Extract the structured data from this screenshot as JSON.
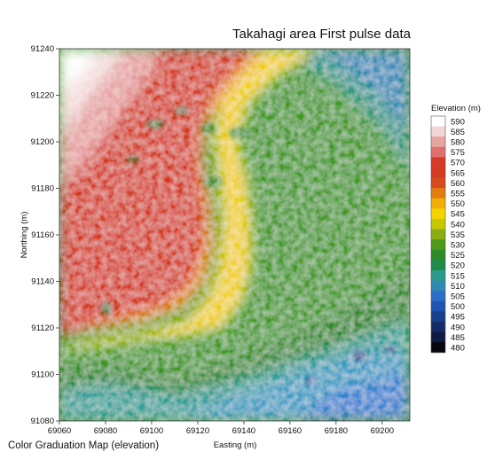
{
  "title": "Takahagi area First pulse data",
  "caption": "Color Graduation Map (elevation)",
  "map": {
    "xlabel": "Easting (m)",
    "ylabel": "Northing (m)",
    "x_ticks": [
      69060,
      69080,
      69100,
      69120,
      69140,
      69160,
      69180,
      69200
    ],
    "y_ticks": [
      91080,
      91100,
      91120,
      91140,
      91160,
      91180,
      91200,
      91220,
      91240
    ],
    "x_range": [
      69060,
      69212
    ],
    "y_range": [
      91080,
      91240
    ]
  },
  "legend": {
    "title": "Elevation (m)",
    "values": [
      590,
      585,
      580,
      575,
      570,
      565,
      560,
      555,
      550,
      545,
      540,
      535,
      530,
      525,
      520,
      515,
      510,
      505,
      500,
      495,
      490,
      485,
      480
    ],
    "colors": [
      "#ffffff",
      "#f2d6d6",
      "#e6a5a0",
      "#e0716a",
      "#d83a2a",
      "#d33a22",
      "#d64a1c",
      "#e27d10",
      "#f0ae06",
      "#f5d400",
      "#c8c800",
      "#8aae10",
      "#4d9a18",
      "#2c8a28",
      "#1f8a4a",
      "#2a9a8a",
      "#2e8ab0",
      "#2b6fc8",
      "#1f54b0",
      "#183e8c",
      "#142c66",
      "#0e1a40",
      "#05060f"
    ]
  }
}
